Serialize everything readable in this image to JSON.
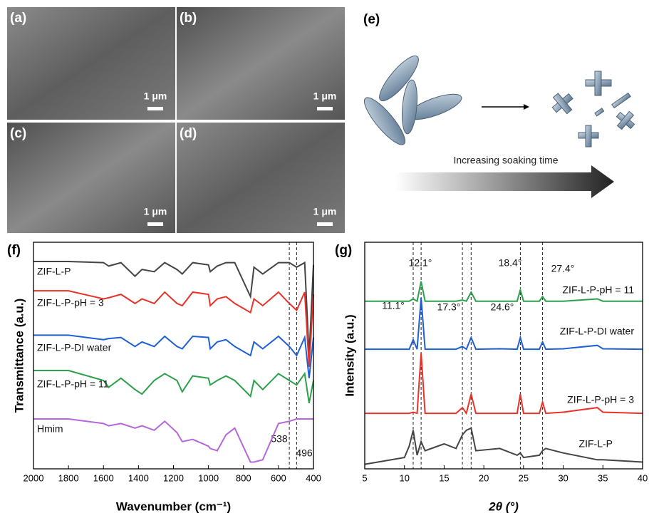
{
  "panels": {
    "a": "(a)",
    "b": "(b)",
    "c": "(c)",
    "d": "(d)",
    "e": "(e)",
    "f": "(f)",
    "g": "(g)"
  },
  "scale_bars": [
    "1 μm",
    "1 μm",
    "1 μm",
    "1 μm"
  ],
  "schematic": {
    "arrow_text": "Increasing soaking time"
  },
  "chart_data": [
    {
      "type": "line",
      "xlabel": "Wavenumber (cm⁻¹)",
      "ylabel": "Transmittance (a.u.)",
      "xlim": [
        2000,
        400
      ],
      "xticks": [
        2000,
        1800,
        1600,
        1400,
        1200,
        1000,
        800,
        600,
        400
      ],
      "ylim": [
        0,
        10
      ],
      "x": [
        2000,
        1800,
        1600,
        1570,
        1500,
        1420,
        1380,
        1310,
        1250,
        1180,
        1150,
        1090,
        1000,
        990,
        950,
        900,
        850,
        760,
        740,
        690,
        600,
        538,
        496,
        450,
        425,
        400
      ],
      "series": [
        {
          "name": "ZIF-L-P",
          "color": "#444444",
          "values": [
            9.15,
            9.15,
            9.1,
            8.95,
            9.1,
            8.5,
            8.8,
            8.7,
            9.1,
            8.8,
            8.6,
            9.1,
            9.0,
            8.7,
            8.95,
            9.1,
            9.1,
            7.6,
            8.9,
            8.6,
            9.1,
            9.1,
            8.9,
            9.1,
            5.0,
            9.0
          ]
        },
        {
          "name": "ZIF-L-P-pH = 3",
          "color": "#e8322a",
          "values": [
            7.86,
            7.86,
            7.5,
            7.55,
            7.7,
            7.3,
            7.5,
            7.3,
            7.8,
            7.3,
            7.2,
            7.8,
            7.7,
            7.2,
            7.5,
            7.6,
            7.3,
            6.9,
            7.5,
            7.2,
            7.8,
            7.3,
            7.0,
            7.8,
            4.5,
            7.7
          ]
        },
        {
          "name": "ZIF-L-P-DI water",
          "color": "#1f5fd6",
          "values": [
            5.9,
            5.9,
            5.7,
            5.75,
            5.8,
            5.4,
            5.6,
            5.4,
            5.85,
            5.4,
            5.3,
            5.85,
            5.8,
            5.3,
            5.6,
            5.7,
            5.4,
            5.0,
            5.6,
            5.3,
            5.85,
            5.4,
            5.0,
            5.8,
            4.0,
            5.8
          ]
        },
        {
          "name": "ZIF-L-P-pH = 11",
          "color": "#2ca04c",
          "values": [
            4.34,
            4.34,
            3.9,
            3.6,
            4.0,
            3.5,
            3.3,
            3.9,
            4.2,
            3.9,
            3.4,
            4.1,
            4.0,
            3.7,
            3.9,
            4.1,
            3.9,
            3.2,
            3.9,
            3.5,
            4.2,
            3.9,
            3.7,
            4.2,
            2.9,
            3.9
          ]
        },
        {
          "name": "Hmim",
          "color": "#b566d8",
          "values": [
            2.2,
            2.2,
            2.0,
            1.9,
            2.0,
            1.8,
            1.9,
            1.7,
            2.1,
            1.6,
            1.2,
            1.3,
            1.0,
            0.9,
            0.8,
            1.5,
            1.8,
            0.3,
            0.3,
            0.4,
            2.0,
            2.1,
            2.2,
            2.2,
            2.2,
            2.2
          ]
        }
      ],
      "annotations": [
        {
          "x": 538,
          "label": "538"
        },
        {
          "x": 496,
          "label": "496"
        }
      ]
    },
    {
      "type": "line",
      "xlabel": "2θ (°)",
      "ylabel": "Intensity (a.u.)",
      "xlim": [
        5,
        40
      ],
      "xticks": [
        5,
        10,
        15,
        20,
        25,
        30,
        35,
        40
      ],
      "ylim": [
        0,
        10
      ],
      "x": [
        5,
        10,
        10.6,
        11.1,
        11.6,
        12.1,
        12.6,
        15,
        16.5,
        17.3,
        17.8,
        18.4,
        19,
        22,
        24.2,
        24.6,
        25,
        27,
        27.4,
        27.8,
        30,
        34.3,
        35,
        40
      ],
      "series": [
        {
          "name": "ZIF-L-P-pH = 11",
          "color": "#2ca04c",
          "values": [
            7.4,
            7.4,
            7.4,
            7.5,
            7.4,
            8.27,
            7.4,
            7.4,
            7.4,
            7.45,
            7.4,
            7.8,
            7.4,
            7.4,
            7.4,
            7.9,
            7.4,
            7.4,
            7.6,
            7.4,
            7.4,
            7.5,
            7.4,
            7.4
          ]
        },
        {
          "name": "ZIF-L-P-DI water",
          "color": "#1f5fd6",
          "values": [
            5.28,
            5.28,
            5.28,
            5.7,
            5.28,
            7.55,
            5.28,
            5.28,
            5.28,
            5.4,
            5.28,
            5.8,
            5.28,
            5.3,
            5.28,
            5.8,
            5.28,
            5.28,
            5.6,
            5.28,
            5.3,
            5.45,
            5.3,
            5.28
          ]
        },
        {
          "name": "ZIF-L-P-pH = 3",
          "color": "#e8322a",
          "values": [
            2.45,
            2.45,
            2.45,
            2.5,
            2.45,
            5.1,
            2.45,
            2.45,
            2.45,
            2.7,
            2.45,
            3.3,
            2.45,
            2.45,
            2.45,
            3.3,
            2.45,
            2.45,
            2.95,
            2.45,
            2.5,
            2.7,
            2.5,
            2.45
          ]
        },
        {
          "name": "ZIF-L-P",
          "color": "#444444",
          "values": [
            0.2,
            0.5,
            1.0,
            1.7,
            0.6,
            1.2,
            0.8,
            1.1,
            0.9,
            1.5,
            1.7,
            1.8,
            0.8,
            0.9,
            0.6,
            0.7,
            0.5,
            0.6,
            0.8,
            0.9,
            0.7,
            0.4,
            0.4,
            0.3
          ]
        }
      ],
      "annotations": [
        {
          "x": 11.1,
          "label": "11.1°"
        },
        {
          "x": 12.1,
          "label": "12.1°"
        },
        {
          "x": 17.3,
          "label": "17.3°"
        },
        {
          "x": 18.4,
          "label": "18.4°"
        },
        {
          "x": 24.6,
          "label": "24.6°"
        },
        {
          "x": 27.4,
          "label": "27.4°"
        }
      ]
    }
  ]
}
